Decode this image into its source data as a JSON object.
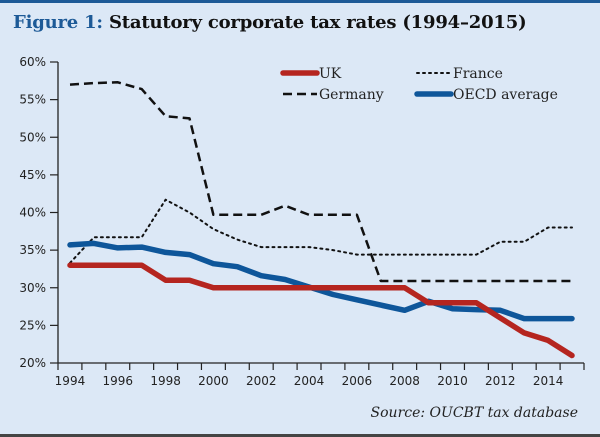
{
  "title": {
    "prefix": "Figure 1:",
    "text": "Statutory corporate tax rates (1994–2015)"
  },
  "source": "Source: OUCBT tax database",
  "chart_data": {
    "type": "line",
    "title": "Figure 1: Statutory corporate tax rates (1994–2015)",
    "xlabel": "",
    "ylabel": "",
    "x": [
      1994,
      1995,
      1996,
      1997,
      1998,
      1999,
      2000,
      2001,
      2002,
      2003,
      2004,
      2005,
      2006,
      2007,
      2008,
      2009,
      2010,
      2011,
      2012,
      2013,
      2014,
      2015
    ],
    "xtick_labels": [
      "1994",
      "1996",
      "1998",
      "2000",
      "2002",
      "2004",
      "2006",
      "2008",
      "2010",
      "2012",
      "2014"
    ],
    "ytick_labels": [
      "20%",
      "25%",
      "30%",
      "35%",
      "40%",
      "45%",
      "50%",
      "55%",
      "60%"
    ],
    "yticks": [
      20,
      25,
      30,
      35,
      40,
      45,
      50,
      55,
      60
    ],
    "ylim": [
      20,
      60
    ],
    "grid": false,
    "legend_position": "top-right",
    "series": [
      {
        "name": "UK",
        "color": "#b5251f",
        "style": "solid-thick",
        "values": [
          33,
          33,
          33,
          33,
          31,
          31,
          30,
          30,
          30,
          30,
          30,
          30,
          30,
          30,
          30,
          28,
          28,
          28,
          26,
          24,
          23,
          21
        ]
      },
      {
        "name": "France",
        "color": "#111111",
        "style": "dotted",
        "values": [
          33.3,
          36.7,
          36.7,
          36.7,
          41.7,
          40,
          37.8,
          36.4,
          35.4,
          35.4,
          35.4,
          35,
          34.4,
          34.4,
          34.4,
          34.4,
          34.4,
          34.4,
          36.1,
          36.1,
          38,
          38
        ]
      },
      {
        "name": "Germany",
        "color": "#111111",
        "style": "dashed",
        "values": [
          57,
          57.2,
          57.3,
          56.4,
          52.8,
          52.5,
          39.7,
          39.7,
          39.7,
          40.9,
          39.7,
          39.7,
          39.7,
          30.9,
          30.9,
          30.9,
          30.9,
          30.9,
          30.9,
          30.9,
          30.9,
          30.9
        ]
      },
      {
        "name": "OECD average",
        "color": "#0e569a",
        "style": "solid-thick",
        "values": [
          35.7,
          35.9,
          35.3,
          35.4,
          34.7,
          34.4,
          33.2,
          32.8,
          31.6,
          31.1,
          30.1,
          29.1,
          28.4,
          27.7,
          27,
          28.2,
          27.2,
          27.1,
          27,
          25.9,
          25.9,
          25.9
        ]
      }
    ]
  }
}
